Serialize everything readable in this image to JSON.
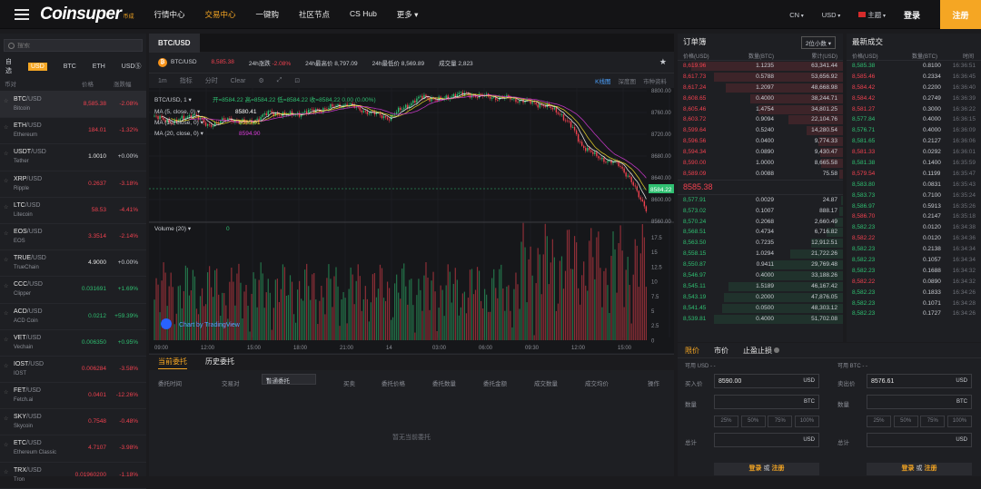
{
  "header": {
    "logo": "Coinsuper",
    "logo_sub": "币成",
    "nav": [
      "行情中心",
      "交易中心",
      "一键购",
      "社区节点",
      "CS Hub",
      "更多"
    ],
    "active_nav": 1,
    "lang": "CN",
    "currency": "USD",
    "theme": "主题",
    "login": "登录",
    "register": "注册"
  },
  "markets": {
    "search_placeholder": "搜索",
    "tabs": [
      "自选",
      "USD",
      "BTC",
      "ETH",
      "USDⓈ"
    ],
    "active_tab": 1,
    "head": {
      "coin": "币对",
      "price": "价格",
      "change": "涨跌幅"
    },
    "rows": [
      {
        "base": "BTC",
        "quote": "/USD",
        "name": "Bitcoin",
        "price": "8,585.38",
        "change": "-2.08%",
        "dir": "red"
      },
      {
        "base": "ETH",
        "quote": "/USD",
        "name": "Ethereum",
        "price": "184.01",
        "change": "-1.32%",
        "dir": "red"
      },
      {
        "base": "USDT",
        "quote": "/USD",
        "name": "Tether",
        "price": "1.0010",
        "change": "+0.00%",
        "dir": "grey"
      },
      {
        "base": "XRP",
        "quote": "/USD",
        "name": "Ripple",
        "price": "0.2637",
        "change": "-3.18%",
        "dir": "red"
      },
      {
        "base": "LTC",
        "quote": "/USD",
        "name": "Litecoin",
        "price": "58.53",
        "change": "-4.41%",
        "dir": "red"
      },
      {
        "base": "EOS",
        "quote": "/USD",
        "name": "EOS",
        "price": "3.3514",
        "change": "-2.14%",
        "dir": "red"
      },
      {
        "base": "TRUE",
        "quote": "/USD",
        "name": "TrueChain",
        "price": "4.9000",
        "change": "+0.00%",
        "dir": "grey"
      },
      {
        "base": "CCC",
        "quote": "/USD",
        "name": "Clipper",
        "price": "0.031691",
        "change": "+1.69%",
        "dir": "green"
      },
      {
        "base": "ACD",
        "quote": "/USD",
        "name": "ACD Coin",
        "price": "0.0212",
        "change": "+59.39%",
        "dir": "green"
      },
      {
        "base": "VET",
        "quote": "/USD",
        "name": "Vechain",
        "price": "0.006350",
        "change": "+0.95%",
        "dir": "green"
      },
      {
        "base": "IOST",
        "quote": "/USD",
        "name": "IOST",
        "price": "0.006284",
        "change": "-3.58%",
        "dir": "red"
      },
      {
        "base": "FET",
        "quote": "/USD",
        "name": "Fetch.ai",
        "price": "0.0401",
        "change": "-12.26%",
        "dir": "red"
      },
      {
        "base": "SKY",
        "quote": "/USD",
        "name": "Skycoin",
        "price": "0.7548",
        "change": "-0.48%",
        "dir": "red"
      },
      {
        "base": "ETC",
        "quote": "/USD",
        "name": "Ethereum Classic",
        "price": "4.7107",
        "change": "-3.98%",
        "dir": "red"
      },
      {
        "base": "TRX",
        "quote": "/USD",
        "name": "Tron",
        "price": "0.01960200",
        "change": "-1.18%",
        "dir": "red"
      }
    ]
  },
  "chart": {
    "pair_tab": "BTC/USD",
    "ticker": {
      "pair": "BTC/USD",
      "price": "8,585.38",
      "change_label": "24h涨跌",
      "change": "-2.08%",
      "high_label": "24h最高价",
      "high": "8,797.09",
      "low_label": "24h最低价",
      "low": "8,569.89",
      "vol_label": "成交量",
      "vol": "2,823"
    },
    "toolbar": [
      "1m",
      "指标",
      "分时",
      "Clear"
    ],
    "toolbar_right": [
      "K线图",
      "深度图",
      "市种资料"
    ],
    "legend_main": "BTC/USD, 1 ▾",
    "ohlc": {
      "o_label": "开",
      "o": "8584.22",
      "h_label": "高",
      "h": "8584.22",
      "l_label": "低",
      "l": "8584.22",
      "c_label": "收",
      "c": "8584.22",
      "chg": "0.00 (0.00%)"
    },
    "ma5_label": "MA (5, close, 0) ▾",
    "ma5": "8580.41",
    "ma10_label": "MA (10, close, 0) ▾",
    "ma10": "8585.01",
    "ma20_label": "MA (20, close, 0) ▾",
    "ma20": "8594.90",
    "vol_label": "Volume (20) ▾",
    "vol_val": "0",
    "price_ticks": [
      "8800.00",
      "8760.00",
      "8720.00",
      "8680.00",
      "8640.00",
      "8600.00",
      "8560.00"
    ],
    "last_price": "8584.22",
    "vol_ticks": [
      "17.5",
      "15",
      "12.5",
      "10",
      "7.5",
      "5",
      "2.5",
      "0"
    ],
    "time_ticks": [
      "09:00",
      "12:00",
      "15:00",
      "18:00",
      "21:00",
      "14",
      "03:00",
      "06:00",
      "09:30",
      "12:00",
      "15:00"
    ],
    "tradingview": "Chart by TradingView",
    "colors": {
      "up": "#2fbf71",
      "down": "#f0414f",
      "ma5": "#ffffff",
      "ma10": "#f5e12d",
      "ma20": "#d93bd9"
    }
  },
  "orders": {
    "tabs": [
      "当前委托",
      "历史委托"
    ],
    "head": [
      "委托时间",
      "交易对",
      "普通委托",
      "买卖",
      "委托价格",
      "委托数量",
      "委托金额",
      "成交数量",
      "成交均价",
      "操作"
    ],
    "empty": "暂无当前委托"
  },
  "book": {
    "title": "订单簿",
    "precision": "2位小数 ▾",
    "head": {
      "price": "价格(USD)",
      "qty": "数量(BTC)",
      "total": "累计(USD)"
    },
    "asks": [
      {
        "price": "8,619.96",
        "qty": "1.1235",
        "total": "63,341.44",
        "depth": 0.92
      },
      {
        "price": "8,617.73",
        "qty": "0.5788",
        "total": "53,656.92",
        "depth": 0.78
      },
      {
        "price": "8,617.24",
        "qty": "1.2097",
        "total": "48,668.98",
        "depth": 0.71
      },
      {
        "price": "8,608.65",
        "qty": "0.4000",
        "total": "38,244.71",
        "depth": 0.56
      },
      {
        "price": "8,605.46",
        "qty": "1.4754",
        "total": "34,801.25",
        "depth": 0.51
      },
      {
        "price": "8,603.72",
        "qty": "0.9094",
        "total": "22,104.76",
        "depth": 0.33
      },
      {
        "price": "8,599.64",
        "qty": "0.5240",
        "total": "14,280.54",
        "depth": 0.22
      },
      {
        "price": "8,596.56",
        "qty": "0.0400",
        "total": "9,774.33",
        "depth": 0.15
      },
      {
        "price": "8,594.34",
        "qty": "0.0890",
        "total": "9,430.47",
        "depth": 0.14
      },
      {
        "price": "8,590.00",
        "qty": "1.0000",
        "total": "8,665.58",
        "depth": 0.13
      },
      {
        "price": "8,589.09",
        "qty": "0.0088",
        "total": "75.58",
        "depth": 0.02
      }
    ],
    "mid": "8585.38",
    "bids": [
      {
        "price": "8,577.91",
        "qty": "0.0029",
        "total": "24.87",
        "depth": 0.01
      },
      {
        "price": "8,573.02",
        "qty": "0.1007",
        "total": "888.17",
        "depth": 0.02
      },
      {
        "price": "8,570.24",
        "qty": "0.2068",
        "total": "2,660.49",
        "depth": 0.05
      },
      {
        "price": "8,568.51",
        "qty": "0.4734",
        "total": "6,716.82",
        "depth": 0.1
      },
      {
        "price": "8,563.50",
        "qty": "0.7235",
        "total": "12,912.51",
        "depth": 0.19
      },
      {
        "price": "8,558.15",
        "qty": "1.0294",
        "total": "21,722.26",
        "depth": 0.32
      },
      {
        "price": "8,550.87",
        "qty": "0.9411",
        "total": "29,769.48",
        "depth": 0.44
      },
      {
        "price": "8,546.97",
        "qty": "0.4000",
        "total": "33,188.26",
        "depth": 0.5
      },
      {
        "price": "8,545.11",
        "qty": "1.5189",
        "total": "46,167.42",
        "depth": 0.69
      },
      {
        "price": "8,543.19",
        "qty": "0.2000",
        "total": "47,876.05",
        "depth": 0.72
      },
      {
        "price": "8,541.45",
        "qty": "0.0500",
        "total": "48,303.12",
        "depth": 0.73
      },
      {
        "price": "8,539.81",
        "qty": "0.4000",
        "total": "51,702.08",
        "depth": 0.78
      }
    ]
  },
  "trades": {
    "title": "最新成交",
    "head": {
      "price": "价格(USD)",
      "qty": "数量(BTC)",
      "time": "时间"
    },
    "rows": [
      {
        "price": "8,585.38",
        "qty": "0.8100",
        "time": "16:36:51",
        "dir": "green"
      },
      {
        "price": "8,585.46",
        "qty": "0.2334",
        "time": "16:36:45",
        "dir": "red"
      },
      {
        "price": "8,584.42",
        "qty": "0.2200",
        "time": "16:36:40",
        "dir": "red"
      },
      {
        "price": "8,584.42",
        "qty": "0.2749",
        "time": "16:36:39",
        "dir": "red"
      },
      {
        "price": "8,581.27",
        "qty": "0.3000",
        "time": "16:36:22",
        "dir": "red"
      },
      {
        "price": "8,577.84",
        "qty": "0.4000",
        "time": "16:36:15",
        "dir": "green"
      },
      {
        "price": "8,576.71",
        "qty": "0.4000",
        "time": "16:36:09",
        "dir": "green"
      },
      {
        "price": "8,581.65",
        "qty": "0.2127",
        "time": "16:36:06",
        "dir": "green"
      },
      {
        "price": "8,581.33",
        "qty": "0.0292",
        "time": "16:36:01",
        "dir": "red"
      },
      {
        "price": "8,581.38",
        "qty": "0.1400",
        "time": "16:35:59",
        "dir": "green"
      },
      {
        "price": "8,579.54",
        "qty": "0.1199",
        "time": "16:35:47",
        "dir": "red"
      },
      {
        "price": "8,583.80",
        "qty": "0.0831",
        "time": "16:35:43",
        "dir": "green"
      },
      {
        "price": "8,583.73",
        "qty": "0.7100",
        "time": "16:35:24",
        "dir": "green"
      },
      {
        "price": "8,586.97",
        "qty": "0.5913",
        "time": "16:35:26",
        "dir": "green"
      },
      {
        "price": "8,586.70",
        "qty": "0.2147",
        "time": "16:35:18",
        "dir": "red"
      },
      {
        "price": "8,582.23",
        "qty": "0.0120",
        "time": "16:34:38",
        "dir": "green"
      },
      {
        "price": "8,582.22",
        "qty": "0.0120",
        "time": "16:34:36",
        "dir": "red"
      },
      {
        "price": "8,582.23",
        "qty": "0.2138",
        "time": "16:34:34",
        "dir": "green"
      },
      {
        "price": "8,582.23",
        "qty": "0.1057",
        "time": "16:34:34",
        "dir": "green"
      },
      {
        "price": "8,582.23",
        "qty": "0.1688",
        "time": "16:34:32",
        "dir": "green"
      },
      {
        "price": "8,582.22",
        "qty": "0.0890",
        "time": "16:34:32",
        "dir": "red"
      },
      {
        "price": "8,582.23",
        "qty": "0.1833",
        "time": "16:34:26",
        "dir": "green"
      },
      {
        "price": "8,582.23",
        "qty": "0.1071",
        "time": "16:34:28",
        "dir": "green"
      },
      {
        "price": "8,582.23",
        "qty": "0.1727",
        "time": "16:34:26",
        "dir": "green"
      }
    ]
  },
  "form": {
    "tabs": [
      "限价",
      "市价",
      "止盈止损"
    ],
    "buy": {
      "avail": "可用 USD - -",
      "price_label": "买入价",
      "price": "8590.00",
      "unit": "USD",
      "qty_label": "数量",
      "qty_unit": "BTC",
      "total_label": "总计",
      "total_unit": "USD"
    },
    "sell": {
      "avail": "可用 BTC - -",
      "price_label": "卖出价",
      "price": "8576.61",
      "unit": "USD",
      "qty_label": "数量",
      "qty_unit": "BTC",
      "total_label": "总计",
      "total_unit": "USD"
    },
    "pcts": [
      "25%",
      "50%",
      "75%",
      "100%"
    ],
    "btn_login": "登录",
    "btn_or": "或",
    "btn_register": "注册"
  }
}
